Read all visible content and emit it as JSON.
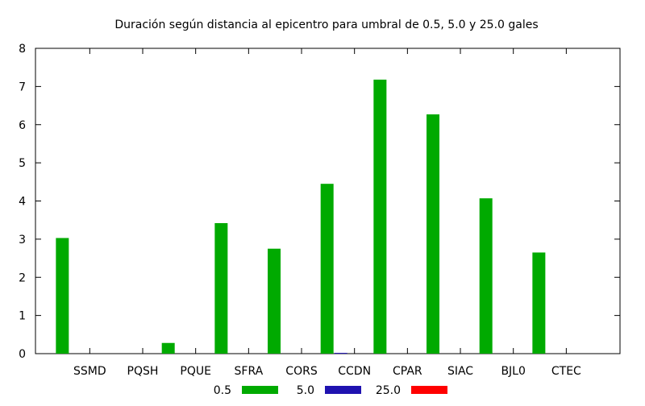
{
  "chart_data": {
    "type": "bar",
    "title": "Duración según distancia al epicentro para umbral de 0.5, 5.0 y 25.0 gales",
    "xlabel": "",
    "ylabel": "",
    "categories": [
      "SSMD",
      "PQSH",
      "PQUE",
      "SFRA",
      "CORS",
      "CCDN",
      "CPAR",
      "SIAC",
      "BJL0",
      "CTEC"
    ],
    "yticks": [
      "0",
      "1",
      "2",
      "3",
      "4",
      "5",
      "6",
      "7",
      "8"
    ],
    "ylim": [
      0,
      8
    ],
    "grid": false,
    "legend_position": "bottom",
    "series": [
      {
        "name": "0.5",
        "color": "#00aa00",
        "values": [
          3.03,
          0,
          0.28,
          3.42,
          2.75,
          4.45,
          7.18,
          6.27,
          4.07,
          2.65
        ]
      },
      {
        "name": "5.0",
        "color": "#1f12b0",
        "values": [
          0,
          0,
          0,
          0,
          0,
          0.02,
          0,
          0,
          0,
          0
        ]
      },
      {
        "name": "25.0",
        "color": "#ff0000",
        "values": [
          0,
          0,
          0,
          0,
          0,
          0,
          0,
          0,
          0,
          0
        ]
      }
    ]
  }
}
